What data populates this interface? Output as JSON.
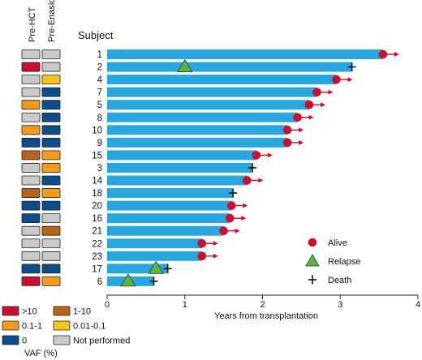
{
  "chart_data": {
    "type": "bar",
    "orientation": "horizontal",
    "xlabel": "Years from transplantation",
    "x_ticks": [
      "0",
      "1",
      "2",
      "3",
      "4"
    ],
    "xlim": [
      0,
      4
    ],
    "subject_header": "Subject",
    "column_headers": [
      "Pre-HCT",
      "Pre-Enasidenib"
    ],
    "subjects": [
      {
        "id": "1",
        "years": 3.55,
        "outcome": "alive",
        "relapse": null,
        "vaf": [
          "not_performed",
          "not_performed"
        ]
      },
      {
        "id": "2",
        "years": 3.15,
        "outcome": "death",
        "relapse": 1.0,
        "vaf": [
          ">10",
          "not_performed"
        ]
      },
      {
        "id": "4",
        "years": 2.95,
        "outcome": "alive",
        "relapse": null,
        "vaf": [
          "not_performed",
          "0.01-0.1"
        ]
      },
      {
        "id": "7",
        "years": 2.7,
        "outcome": "alive",
        "relapse": null,
        "vaf": [
          "not_performed",
          "0"
        ]
      },
      {
        "id": "5",
        "years": 2.6,
        "outcome": "alive",
        "relapse": null,
        "vaf": [
          "0.1-1",
          "0"
        ]
      },
      {
        "id": "8",
        "years": 2.45,
        "outcome": "alive",
        "relapse": null,
        "vaf": [
          "not_performed",
          "0"
        ]
      },
      {
        "id": "10",
        "years": 2.32,
        "outcome": "alive",
        "relapse": null,
        "vaf": [
          "0.1-1",
          "0"
        ]
      },
      {
        "id": "9",
        "years": 2.32,
        "outcome": "alive",
        "relapse": null,
        "vaf": [
          "0",
          "0"
        ]
      },
      {
        "id": "15",
        "years": 1.92,
        "outcome": "alive",
        "relapse": null,
        "vaf": [
          "1-10",
          "0.1-1"
        ]
      },
      {
        "id": "3",
        "years": 1.87,
        "outcome": "death",
        "relapse": null,
        "vaf": [
          "not_performed",
          "0.1-1"
        ]
      },
      {
        "id": "14",
        "years": 1.8,
        "outcome": "alive",
        "relapse": null,
        "vaf": [
          "not_performed",
          "0"
        ]
      },
      {
        "id": "18",
        "years": 1.62,
        "outcome": "death",
        "relapse": null,
        "vaf": [
          "1-10",
          "0.1-1"
        ]
      },
      {
        "id": "20",
        "years": 1.6,
        "outcome": "alive",
        "relapse": null,
        "vaf": [
          "0",
          "0"
        ]
      },
      {
        "id": "16",
        "years": 1.58,
        "outcome": "alive",
        "relapse": null,
        "vaf": [
          "0",
          "not_performed"
        ]
      },
      {
        "id": "21",
        "years": 1.5,
        "outcome": "alive",
        "relapse": null,
        "vaf": [
          "not_performed",
          "1-10"
        ]
      },
      {
        "id": "22",
        "years": 1.22,
        "outcome": "alive",
        "relapse": null,
        "vaf": [
          "not_performed",
          "not_performed"
        ]
      },
      {
        "id": "23",
        "years": 1.22,
        "outcome": "alive",
        "relapse": null,
        "vaf": [
          "not_performed",
          "not_performed"
        ]
      },
      {
        "id": "17",
        "years": 0.78,
        "outcome": "death",
        "relapse": 0.63,
        "vaf": [
          "0",
          "0"
        ]
      },
      {
        "id": "6",
        "years": 0.6,
        "outcome": "death",
        "relapse": 0.27,
        "vaf": [
          ">10",
          "0.1-1"
        ]
      }
    ],
    "outcome_legend": [
      {
        "key": "alive",
        "label": "Alive"
      },
      {
        "key": "relapse",
        "label": "Relapse"
      },
      {
        "key": "death",
        "label": "Death"
      }
    ],
    "vaf_legend_title": "VAF (%)",
    "vaf_legend": [
      {
        "key": ">10",
        "label": ">10",
        "color": "#c8102e"
      },
      {
        "key": "1-10",
        "label": "1-10",
        "color": "#b7641a"
      },
      {
        "key": "0.1-1",
        "label": "0.1-1",
        "color": "#f39a1e"
      },
      {
        "key": "0.01-0.1",
        "label": "0.01-0.1",
        "color": "#f5c518"
      },
      {
        "key": "0",
        "label": "0",
        "color": "#0e4c8a"
      },
      {
        "key": "not_performed",
        "label": "Not performed",
        "color": "#c9c9cb"
      }
    ],
    "colors": {
      "bar": "#2aa6de",
      "alive": "#c8102e",
      "arrow": "#c8102e",
      "relapse": "#5cb346",
      "death": "#111111"
    }
  }
}
